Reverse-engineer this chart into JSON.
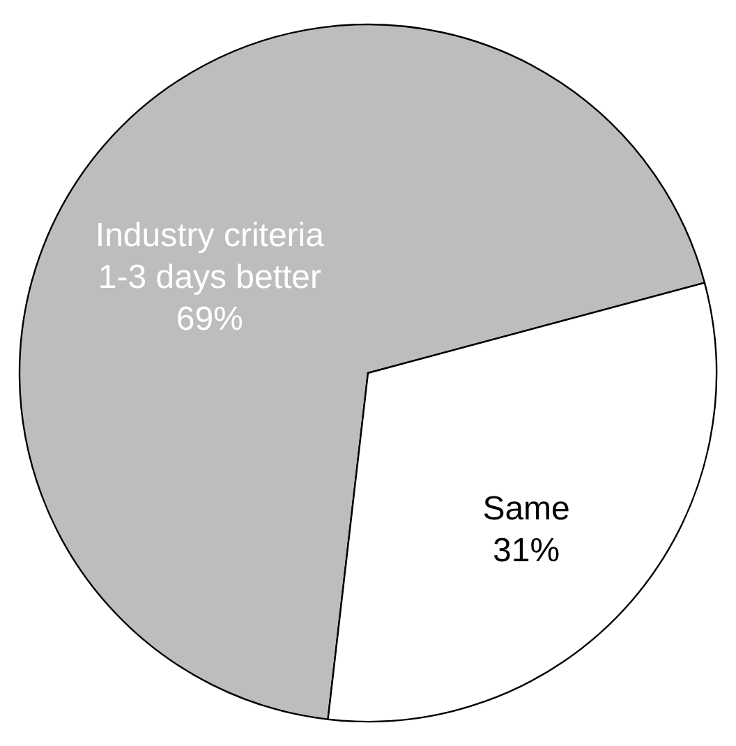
{
  "chart_data": {
    "type": "pie",
    "categories": [
      "Industry criteria\n1-3 days better",
      "Same"
    ],
    "values": [
      69,
      31
    ],
    "colors": [
      "#bdbdbd",
      "#ffffff"
    ],
    "value_labels": [
      "69%",
      "31%"
    ],
    "legend": false
  }
}
